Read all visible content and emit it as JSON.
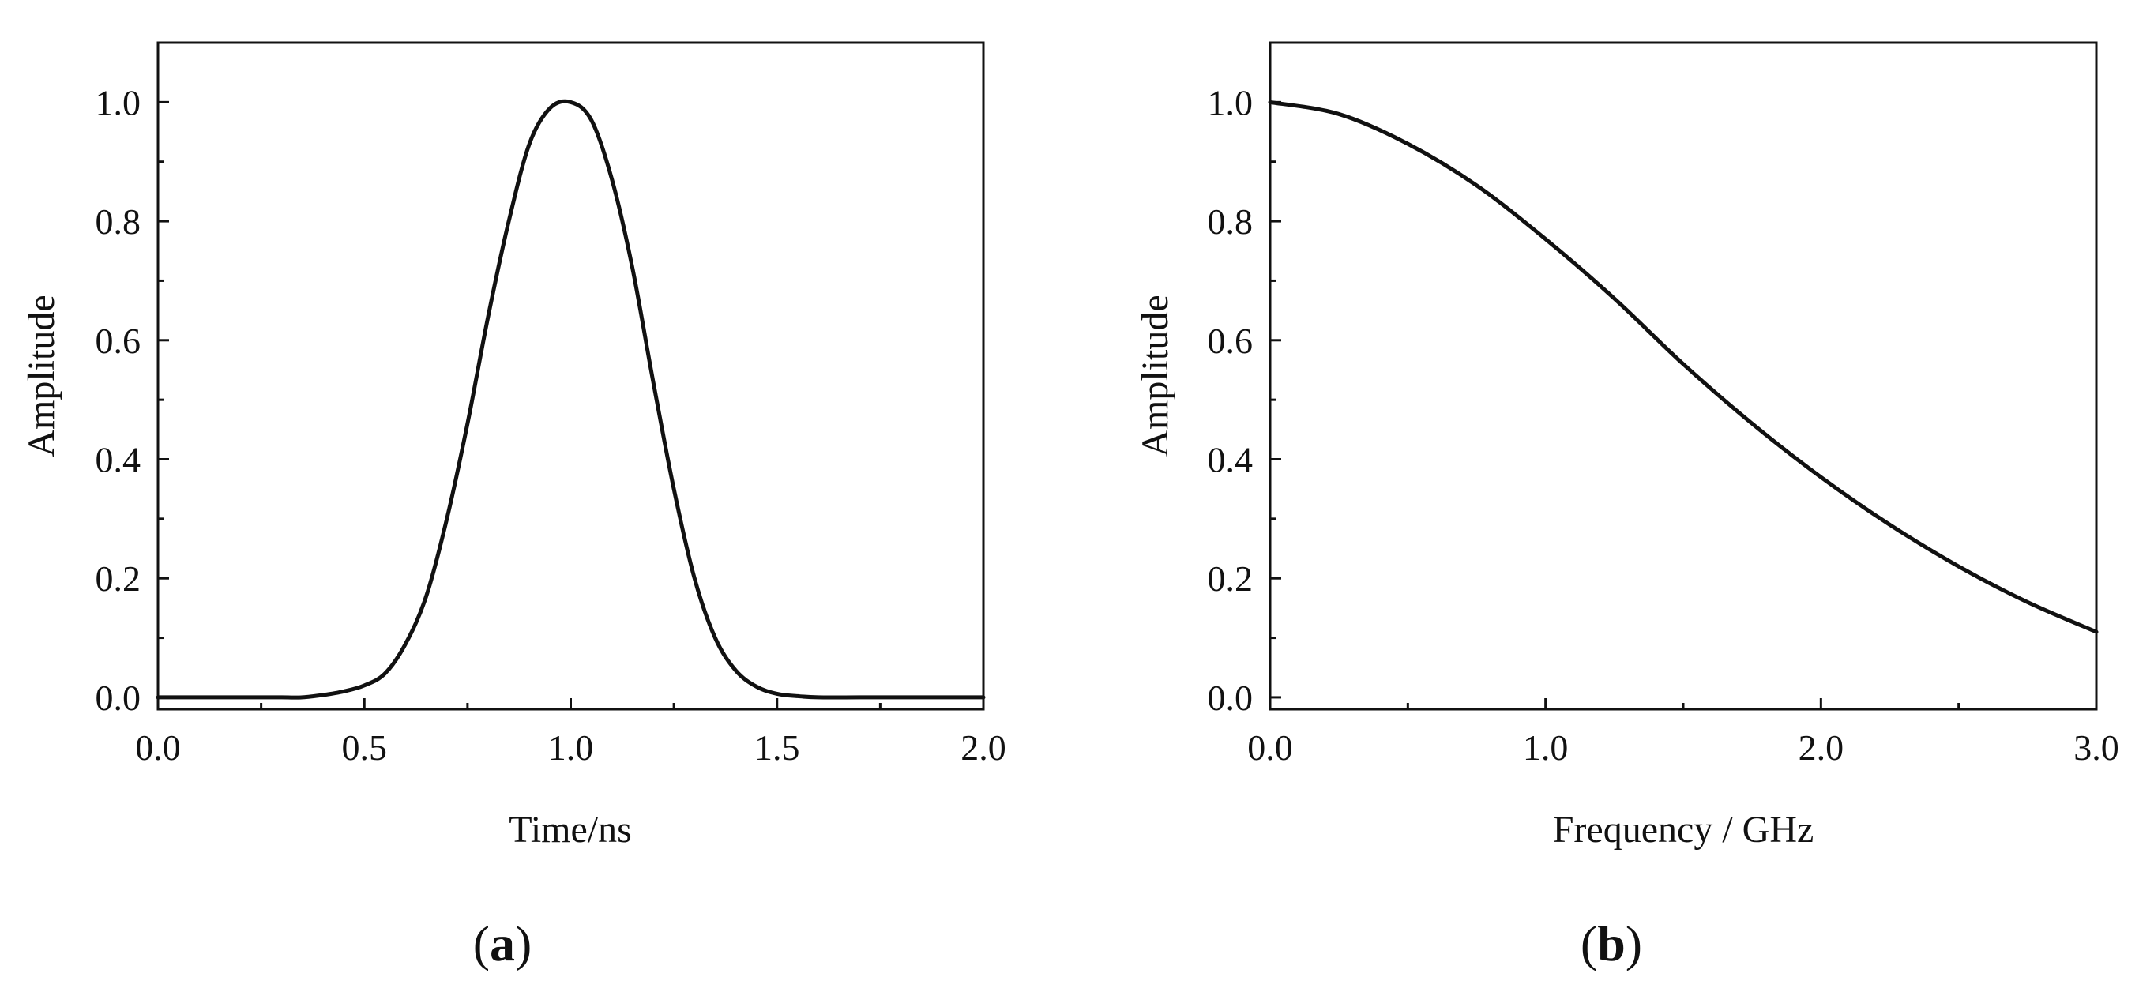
{
  "chart_data": [
    {
      "type": "line",
      "panel_label": "a",
      "xlabel": "Time/ns",
      "ylabel": "Amplitude",
      "xlim": [
        0.0,
        2.0
      ],
      "ylim": [
        -0.02,
        1.1
      ],
      "x_ticks": [
        "0.0",
        "0.5",
        "1.0",
        "1.5",
        "2.0"
      ],
      "y_ticks": [
        "0.0",
        "0.2",
        "0.4",
        "0.6",
        "0.8",
        "1.0"
      ],
      "grid": false,
      "series": [
        {
          "x": [
            0.0,
            0.1,
            0.2,
            0.3,
            0.35,
            0.4,
            0.45,
            0.5,
            0.55,
            0.6,
            0.65,
            0.7,
            0.75,
            0.8,
            0.85,
            0.9,
            0.95,
            1.0,
            1.05,
            1.1,
            1.15,
            1.2,
            1.25,
            1.3,
            1.35,
            1.4,
            1.45,
            1.5,
            1.55,
            1.6,
            1.7,
            1.8,
            1.9,
            2.0
          ],
          "y": [
            0.0,
            0.0,
            0.0,
            0.0,
            0.0,
            0.004,
            0.01,
            0.02,
            0.04,
            0.09,
            0.17,
            0.3,
            0.46,
            0.64,
            0.8,
            0.93,
            0.99,
            1.0,
            0.97,
            0.87,
            0.72,
            0.53,
            0.35,
            0.2,
            0.1,
            0.045,
            0.018,
            0.006,
            0.002,
            0.0,
            0.0,
            0.0,
            0.0,
            0.0
          ]
        }
      ]
    },
    {
      "type": "line",
      "panel_label": "b",
      "xlabel": "Frequency / GHz",
      "ylabel": "Amplitude",
      "xlim": [
        0.0,
        3.0
      ],
      "ylim": [
        -0.02,
        1.1
      ],
      "x_ticks": [
        "0.0",
        "1.0",
        "2.0",
        "3.0"
      ],
      "y_ticks": [
        "0.0",
        "0.2",
        "0.4",
        "0.6",
        "0.8",
        "1.0"
      ],
      "grid": false,
      "series": [
        {
          "x": [
            0.0,
            0.25,
            0.5,
            0.75,
            1.0,
            1.25,
            1.5,
            1.75,
            2.0,
            2.25,
            2.5,
            2.75,
            3.0
          ],
          "y": [
            1.0,
            0.98,
            0.93,
            0.86,
            0.77,
            0.67,
            0.56,
            0.46,
            0.37,
            0.29,
            0.22,
            0.16,
            0.11
          ]
        }
      ]
    }
  ]
}
